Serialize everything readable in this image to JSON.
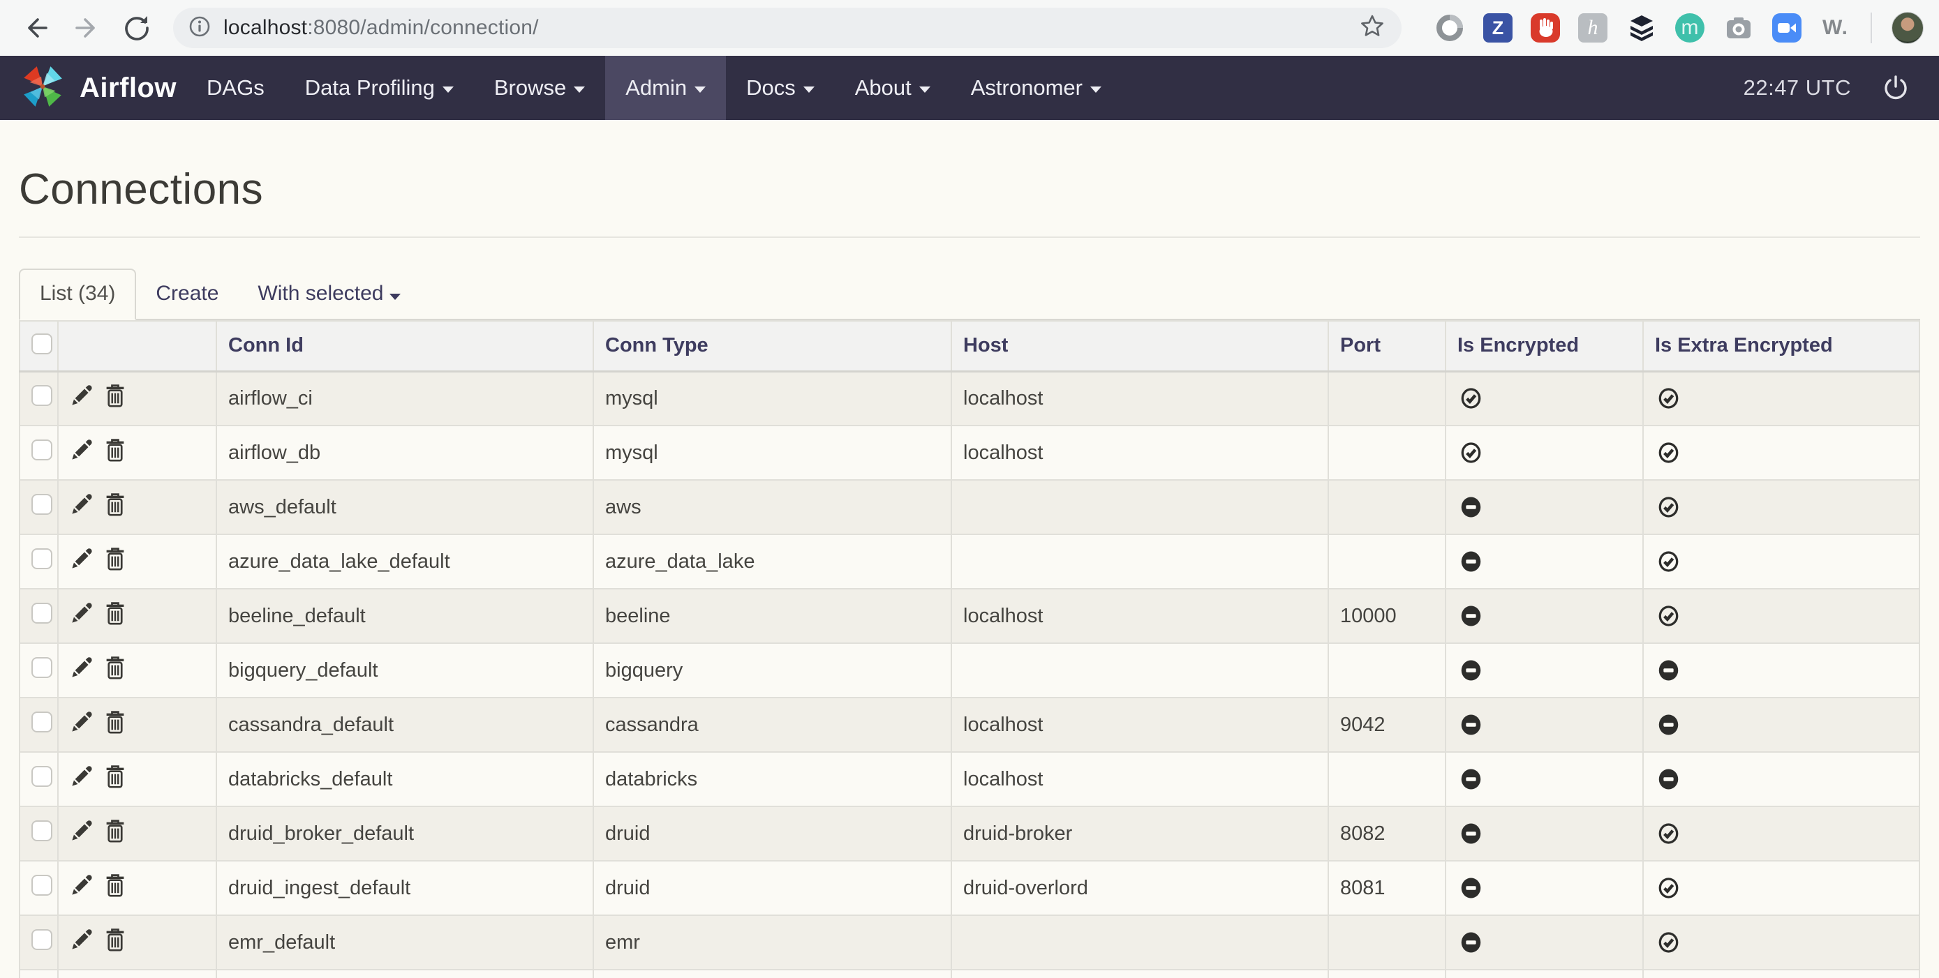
{
  "browser": {
    "url": {
      "host": "localhost",
      "rest": ":8080/admin/connection/"
    },
    "extensions": {
      "zotero_letter": "Z",
      "honey_letter": "h",
      "m_letter": "m",
      "w_label": "W."
    }
  },
  "navbar": {
    "brand": "Airflow",
    "items": [
      {
        "label": "DAGs"
      },
      {
        "label": "Data Profiling"
      },
      {
        "label": "Browse"
      },
      {
        "label": "Admin"
      },
      {
        "label": "Docs"
      },
      {
        "label": "About"
      },
      {
        "label": "Astronomer"
      }
    ],
    "active_item": "Admin",
    "clock": "22:47 UTC"
  },
  "page": {
    "title": "Connections"
  },
  "tabs": {
    "list_label": "List (34)",
    "create_label": "Create",
    "with_selected_label": "With selected"
  },
  "table": {
    "headers": [
      "Conn Id",
      "Conn Type",
      "Host",
      "Port",
      "Is Encrypted",
      "Is Extra Encrypted"
    ],
    "rows": [
      {
        "conn_id": "airflow_ci",
        "conn_type": "mysql",
        "host": "localhost",
        "port": "",
        "is_encrypted": true,
        "is_extra_encrypted": true
      },
      {
        "conn_id": "airflow_db",
        "conn_type": "mysql",
        "host": "localhost",
        "port": "",
        "is_encrypted": true,
        "is_extra_encrypted": true
      },
      {
        "conn_id": "aws_default",
        "conn_type": "aws",
        "host": "",
        "port": "",
        "is_encrypted": false,
        "is_extra_encrypted": true
      },
      {
        "conn_id": "azure_data_lake_default",
        "conn_type": "azure_data_lake",
        "host": "",
        "port": "",
        "is_encrypted": false,
        "is_extra_encrypted": true
      },
      {
        "conn_id": "beeline_default",
        "conn_type": "beeline",
        "host": "localhost",
        "port": "10000",
        "is_encrypted": false,
        "is_extra_encrypted": true
      },
      {
        "conn_id": "bigquery_default",
        "conn_type": "bigquery",
        "host": "",
        "port": "",
        "is_encrypted": false,
        "is_extra_encrypted": false
      },
      {
        "conn_id": "cassandra_default",
        "conn_type": "cassandra",
        "host": "localhost",
        "port": "9042",
        "is_encrypted": false,
        "is_extra_encrypted": false
      },
      {
        "conn_id": "databricks_default",
        "conn_type": "databricks",
        "host": "localhost",
        "port": "",
        "is_encrypted": false,
        "is_extra_encrypted": false
      },
      {
        "conn_id": "druid_broker_default",
        "conn_type": "druid",
        "host": "druid-broker",
        "port": "8082",
        "is_encrypted": false,
        "is_extra_encrypted": true
      },
      {
        "conn_id": "druid_ingest_default",
        "conn_type": "druid",
        "host": "druid-overlord",
        "port": "8081",
        "is_encrypted": false,
        "is_extra_encrypted": true
      },
      {
        "conn_id": "emr_default",
        "conn_type": "emr",
        "host": "",
        "port": "",
        "is_encrypted": false,
        "is_extra_encrypted": true
      }
    ]
  },
  "colors": {
    "navbar_bg": "#312f44",
    "navbar_active_bg": "#4b4862",
    "link_indigo": "#3e3c5f",
    "page_bg": "#fbfaf4",
    "stripe_bg": "#f1efe8",
    "header_bg": "#f2f2f1"
  }
}
